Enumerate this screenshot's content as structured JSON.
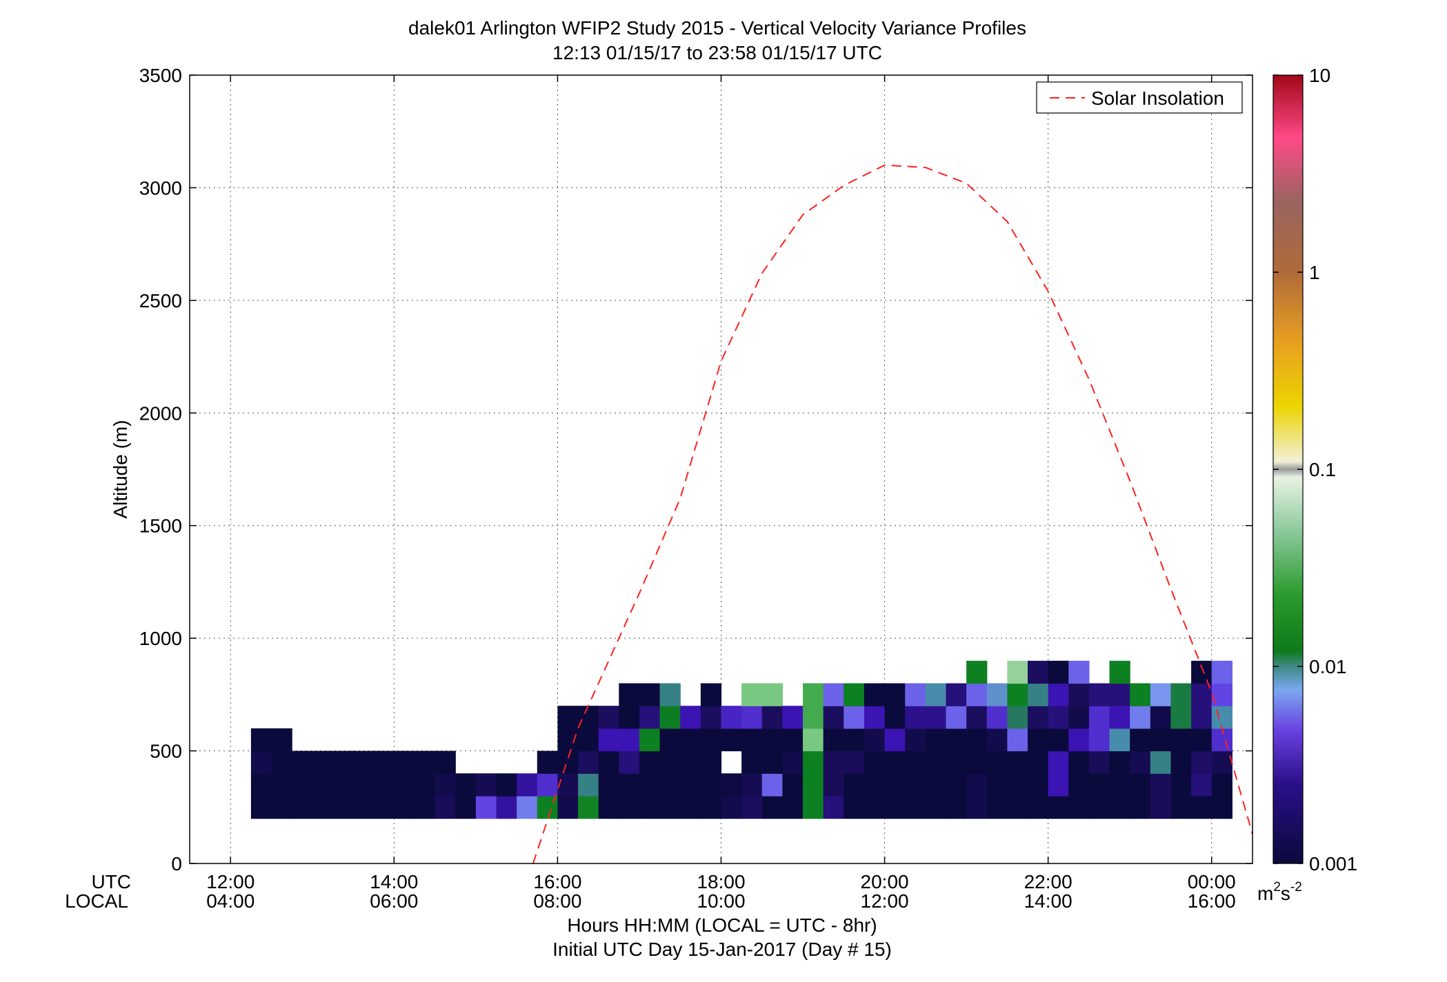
{
  "title": {
    "line1": "dalek01 Arlington WFIP2 Study 2015 - Vertical Velocity Variance Profiles",
    "line2": "12:13 01/15/17 to 23:58 01/15/17  UTC"
  },
  "axes": {
    "ylabel": "Altitude (m)",
    "yticks": [
      "0",
      "500",
      "1000",
      "1500",
      "2000",
      "2500",
      "3000",
      "3500"
    ],
    "xrow_utc_label": "UTC",
    "xrow_local_label": "LOCAL",
    "xticks_utc": [
      "12:00",
      "14:00",
      "16:00",
      "18:00",
      "20:00",
      "22:00",
      "00:00"
    ],
    "xticks_local": [
      "04:00",
      "06:00",
      "08:00",
      "10:00",
      "12:00",
      "14:00",
      "16:00"
    ],
    "xlabel1": "Hours HH:MM  (LOCAL = UTC - 8hr)",
    "xlabel2": "Initial UTC Day 15-Jan-2017 (Day # 15)"
  },
  "legend": {
    "label": "Solar Insolation",
    "color": "#ff2020"
  },
  "colorbar": {
    "ticks": [
      "10",
      "1",
      "0.1",
      "0.01",
      "0.001"
    ],
    "unit_base": "m",
    "unit_sup1": "2",
    "unit_mid": "s",
    "unit_sup2": "-2"
  },
  "chart_data": {
    "type": "heatmap",
    "x_unit": "hours UTC (12 = 12:00, 24 = 00:00 next day)",
    "y_unit": "m",
    "xlim": [
      11.5,
      24.5
    ],
    "ylim": [
      0,
      3500
    ],
    "color_scale": "log",
    "clim": [
      0.001,
      10
    ],
    "grid": true,
    "legend_placement": "top-right",
    "cell_width_hours": 0.25,
    "altitude_bins_m": [
      200,
      300,
      400,
      500,
      600,
      700,
      800
    ],
    "bin_height_m": 100,
    "columns": [
      {
        "t": 12.25,
        "v": [
          0.001,
          0.001,
          0.0012,
          0.001
        ]
      },
      {
        "t": 12.5,
        "v": [
          0.001,
          0.001,
          0.001,
          0.001
        ]
      },
      {
        "t": 12.75,
        "v": [
          0.001,
          0.001,
          0.001
        ]
      },
      {
        "t": 13.0,
        "v": [
          0.001,
          0.001,
          0.001
        ]
      },
      {
        "t": 13.25,
        "v": [
          0.001,
          0.001,
          0.001
        ]
      },
      {
        "t": 13.5,
        "v": [
          0.001,
          0.001,
          0.001
        ]
      },
      {
        "t": 13.75,
        "v": [
          0.001,
          0.001,
          0.001
        ]
      },
      {
        "t": 14.0,
        "v": [
          0.001,
          0.001,
          0.001
        ]
      },
      {
        "t": 14.25,
        "v": [
          0.001,
          0.001,
          0.001
        ]
      },
      {
        "t": 14.5,
        "v": [
          0.0014,
          0.0012,
          0.001
        ]
      },
      {
        "t": 14.75,
        "v": [
          0.001,
          0.001
        ]
      },
      {
        "t": 15.0,
        "v": [
          0.0035,
          0.0013
        ]
      },
      {
        "t": 15.25,
        "v": [
          0.0022,
          0.001
        ]
      },
      {
        "t": 15.5,
        "v": [
          0.0045,
          0.0022
        ]
      },
      {
        "t": 15.75,
        "v": [
          0.012,
          0.003,
          0.001
        ]
      },
      {
        "t": 16.0,
        "v": [
          0.0012,
          0.0013,
          0.001,
          0.001,
          0.001
        ]
      },
      {
        "t": 16.25,
        "v": [
          0.013,
          0.008,
          0.0015,
          0.001,
          0.001
        ]
      },
      {
        "t": 16.5,
        "v": [
          0.001,
          0.001,
          0.001,
          0.0025,
          0.0015
        ]
      },
      {
        "t": 16.75,
        "v": [
          0.001,
          0.001,
          0.0018,
          0.0025,
          0.001,
          0.001
        ]
      },
      {
        "t": 17.0,
        "v": [
          0.001,
          0.001,
          0.001,
          0.012,
          0.0018,
          0.001
        ]
      },
      {
        "t": 17.25,
        "v": [
          0.001,
          0.001,
          0.001,
          0.001,
          0.011,
          0.008
        ]
      },
      {
        "t": 17.5,
        "v": [
          0.001,
          0.001,
          0.001,
          0.001,
          0.0025
        ]
      },
      {
        "t": 17.75,
        "v": [
          0.001,
          0.001,
          0.001,
          0.001,
          0.0015,
          0.001
        ]
      },
      {
        "t": 18.0,
        "v": [
          0.0012,
          0.0011,
          null,
          0.001,
          0.0028
        ]
      },
      {
        "t": 18.25,
        "v": [
          0.0015,
          0.0013,
          0.001,
          0.001,
          0.003,
          0.05
        ]
      },
      {
        "t": 18.5,
        "v": [
          0.001,
          0.004,
          0.001,
          0.001,
          0.0015,
          0.05
        ]
      },
      {
        "t": 18.75,
        "v": [
          0.001,
          0.001,
          0.0012,
          0.001,
          0.0025
        ]
      },
      {
        "t": 19.0,
        "v": [
          0.012,
          0.012,
          0.012,
          0.05,
          0.03,
          0.03
        ]
      },
      {
        "t": 19.25,
        "v": [
          0.0018,
          0.0014,
          0.0014,
          0.001,
          0.0015,
          0.004
        ]
      },
      {
        "t": 19.5,
        "v": [
          0.001,
          0.001,
          0.0014,
          0.001,
          0.004,
          0.012
        ]
      },
      {
        "t": 19.75,
        "v": [
          0.001,
          0.001,
          0.001,
          0.0012,
          0.0025,
          0.001
        ]
      },
      {
        "t": 20.0,
        "v": [
          0.001,
          0.001,
          0.001,
          0.0025,
          0.001,
          0.001
        ]
      },
      {
        "t": 20.25,
        "v": [
          0.001,
          0.001,
          0.001,
          0.0012,
          0.002,
          0.004
        ]
      },
      {
        "t": 20.5,
        "v": [
          0.001,
          0.001,
          0.001,
          0.001,
          0.002,
          0.007
        ]
      },
      {
        "t": 20.75,
        "v": [
          0.001,
          0.001,
          0.001,
          0.001,
          0.004,
          0.0018
        ]
      },
      {
        "t": 21.0,
        "v": [
          0.0012,
          0.0012,
          0.001,
          0.001,
          0.0015,
          0.004,
          0.012
        ]
      },
      {
        "t": 21.25,
        "v": [
          0.001,
          0.001,
          0.001,
          0.0012,
          0.003,
          0.006
        ]
      },
      {
        "t": 21.5,
        "v": [
          0.001,
          0.001,
          0.001,
          0.004,
          0.009,
          0.012,
          0.06
        ]
      },
      {
        "t": 21.75,
        "v": [
          0.001,
          0.001,
          0.001,
          0.001,
          0.0015,
          0.008,
          0.0015
        ]
      },
      {
        "t": 22.0,
        "v": [
          0.001,
          0.0025,
          0.0025,
          0.001,
          0.0018,
          0.0025,
          0.001
        ]
      },
      {
        "t": 22.25,
        "v": [
          0.001,
          0.001,
          0.001,
          0.0025,
          0.0012,
          0.0014,
          0.004
        ]
      },
      {
        "t": 22.5,
        "v": [
          0.001,
          0.001,
          0.0014,
          0.003,
          0.003,
          0.0018
        ]
      },
      {
        "t": 22.75,
        "v": [
          0.001,
          0.001,
          0.001,
          0.007,
          0.0025,
          0.0018,
          0.012
        ]
      },
      {
        "t": 23.0,
        "v": [
          0.001,
          0.001,
          0.0013,
          0.001,
          0.0045,
          0.012
        ]
      },
      {
        "t": 23.25,
        "v": [
          0.0014,
          0.0014,
          0.008,
          0.001,
          0.0012,
          0.005
        ]
      },
      {
        "t": 23.5,
        "v": [
          0.001,
          0.001,
          0.001,
          0.001,
          0.01,
          0.01
        ]
      },
      {
        "t": 23.75,
        "v": [
          0.001,
          0.0018,
          0.0016,
          0.001,
          0.0018,
          0.0018,
          0.001
        ]
      },
      {
        "t": 24.0,
        "v": [
          0.001,
          0.001,
          0.0013,
          0.003,
          0.007,
          0.0035,
          0.004
        ]
      }
    ],
    "series": [
      {
        "name": "Solar Insolation",
        "style": "dashed",
        "points": [
          [
            15.7,
            0
          ],
          [
            16.25,
            600
          ],
          [
            17,
            1200
          ],
          [
            17.5,
            1620
          ],
          [
            18,
            2230
          ],
          [
            18.5,
            2620
          ],
          [
            19,
            2880
          ],
          [
            19.5,
            3010
          ],
          [
            20,
            3100
          ],
          [
            20.5,
            3090
          ],
          [
            21,
            3020
          ],
          [
            21.5,
            2850
          ],
          [
            22,
            2540
          ],
          [
            22.5,
            2150
          ],
          [
            23,
            1700
          ],
          [
            23.5,
            1220
          ],
          [
            24,
            760
          ],
          [
            24.5,
            130
          ]
        ]
      }
    ]
  }
}
